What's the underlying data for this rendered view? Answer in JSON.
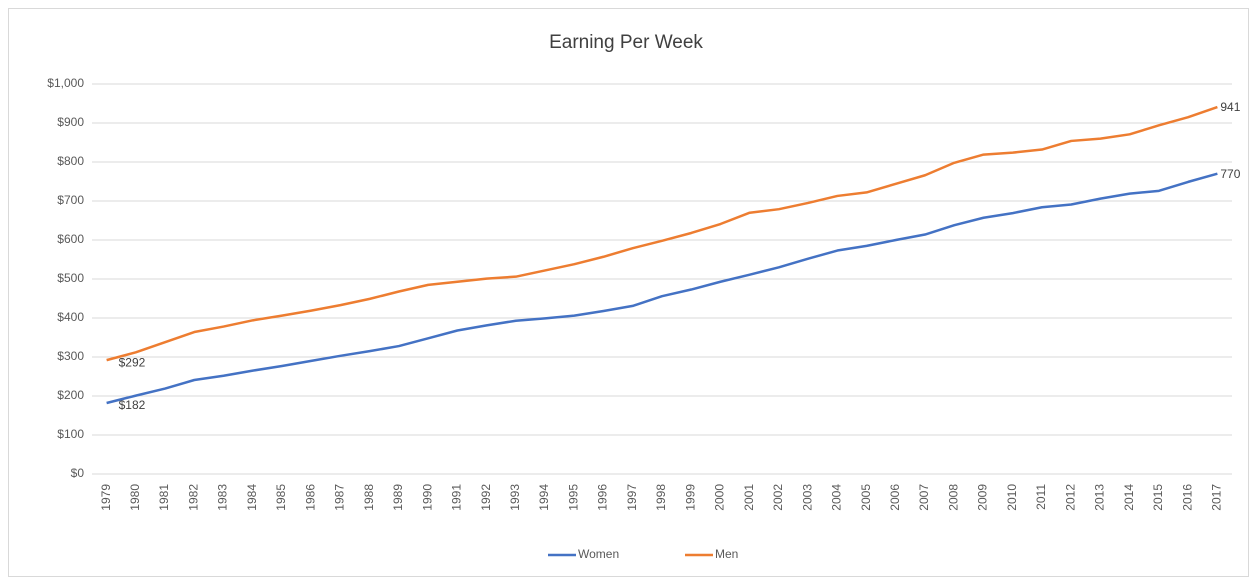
{
  "chart_data": {
    "type": "line",
    "title": "Earning Per Week",
    "categories": [
      "1979",
      "1980",
      "1981",
      "1982",
      "1983",
      "1984",
      "1985",
      "1986",
      "1987",
      "1988",
      "1989",
      "1990",
      "1991",
      "1992",
      "1993",
      "1994",
      "1995",
      "1996",
      "1997",
      "1998",
      "1999",
      "2000",
      "2001",
      "2002",
      "2003",
      "2004",
      "2005",
      "2006",
      "2007",
      "2008",
      "2009",
      "2010",
      "2011",
      "2012",
      "2013",
      "2014",
      "2015",
      "2016",
      "2017"
    ],
    "series": [
      {
        "name": "Women",
        "color": "#4472c4",
        "values": [
          182,
          201,
          219,
          241,
          252,
          265,
          277,
          290,
          303,
          315,
          328,
          348,
          368,
          381,
          393,
          399,
          406,
          418,
          431,
          456,
          473,
          493,
          511,
          530,
          552,
          573,
          585,
          600,
          614,
          638,
          657,
          669,
          684,
          691,
          706,
          719,
          726,
          749,
          770
        ],
        "value_labels": [
          "$182",
          null,
          null,
          null,
          null,
          null,
          null,
          null,
          null,
          null,
          null,
          null,
          null,
          null,
          null,
          null,
          null,
          null,
          null,
          null,
          null,
          null,
          null,
          null,
          null,
          null,
          null,
          null,
          null,
          null,
          null,
          null,
          null,
          null,
          null,
          null,
          null,
          null,
          "770"
        ]
      },
      {
        "name": "Men",
        "color": "#ed7d31",
        "values": [
          292,
          312,
          338,
          364,
          378,
          394,
          406,
          419,
          433,
          449,
          468,
          485,
          493,
          501,
          506,
          522,
          538,
          557,
          579,
          598,
          618,
          641,
          670,
          679,
          695,
          713,
          722,
          744,
          766,
          798,
          819,
          824,
          832,
          854,
          860,
          871,
          894,
          915,
          941
        ],
        "value_labels": [
          "$292",
          null,
          null,
          null,
          null,
          null,
          null,
          null,
          null,
          null,
          null,
          null,
          null,
          null,
          null,
          null,
          null,
          null,
          null,
          null,
          null,
          null,
          null,
          null,
          null,
          null,
          null,
          null,
          null,
          null,
          null,
          null,
          null,
          null,
          null,
          null,
          null,
          null,
          "941"
        ]
      }
    ],
    "ylim": [
      0,
      1000
    ],
    "yticks": [
      {
        "value": 0,
        "label": "$0"
      },
      {
        "value": 100,
        "label": "$100"
      },
      {
        "value": 200,
        "label": "$200"
      },
      {
        "value": 300,
        "label": "$300"
      },
      {
        "value": 400,
        "label": "$400"
      },
      {
        "value": 500,
        "label": "$500"
      },
      {
        "value": 600,
        "label": "$600"
      },
      {
        "value": 700,
        "label": "$700"
      },
      {
        "value": 800,
        "label": "$800"
      },
      {
        "value": 900,
        "label": "$900"
      },
      {
        "value": 1000,
        "label": "$1,000"
      }
    ],
    "grid": true,
    "legend": "bottom"
  }
}
